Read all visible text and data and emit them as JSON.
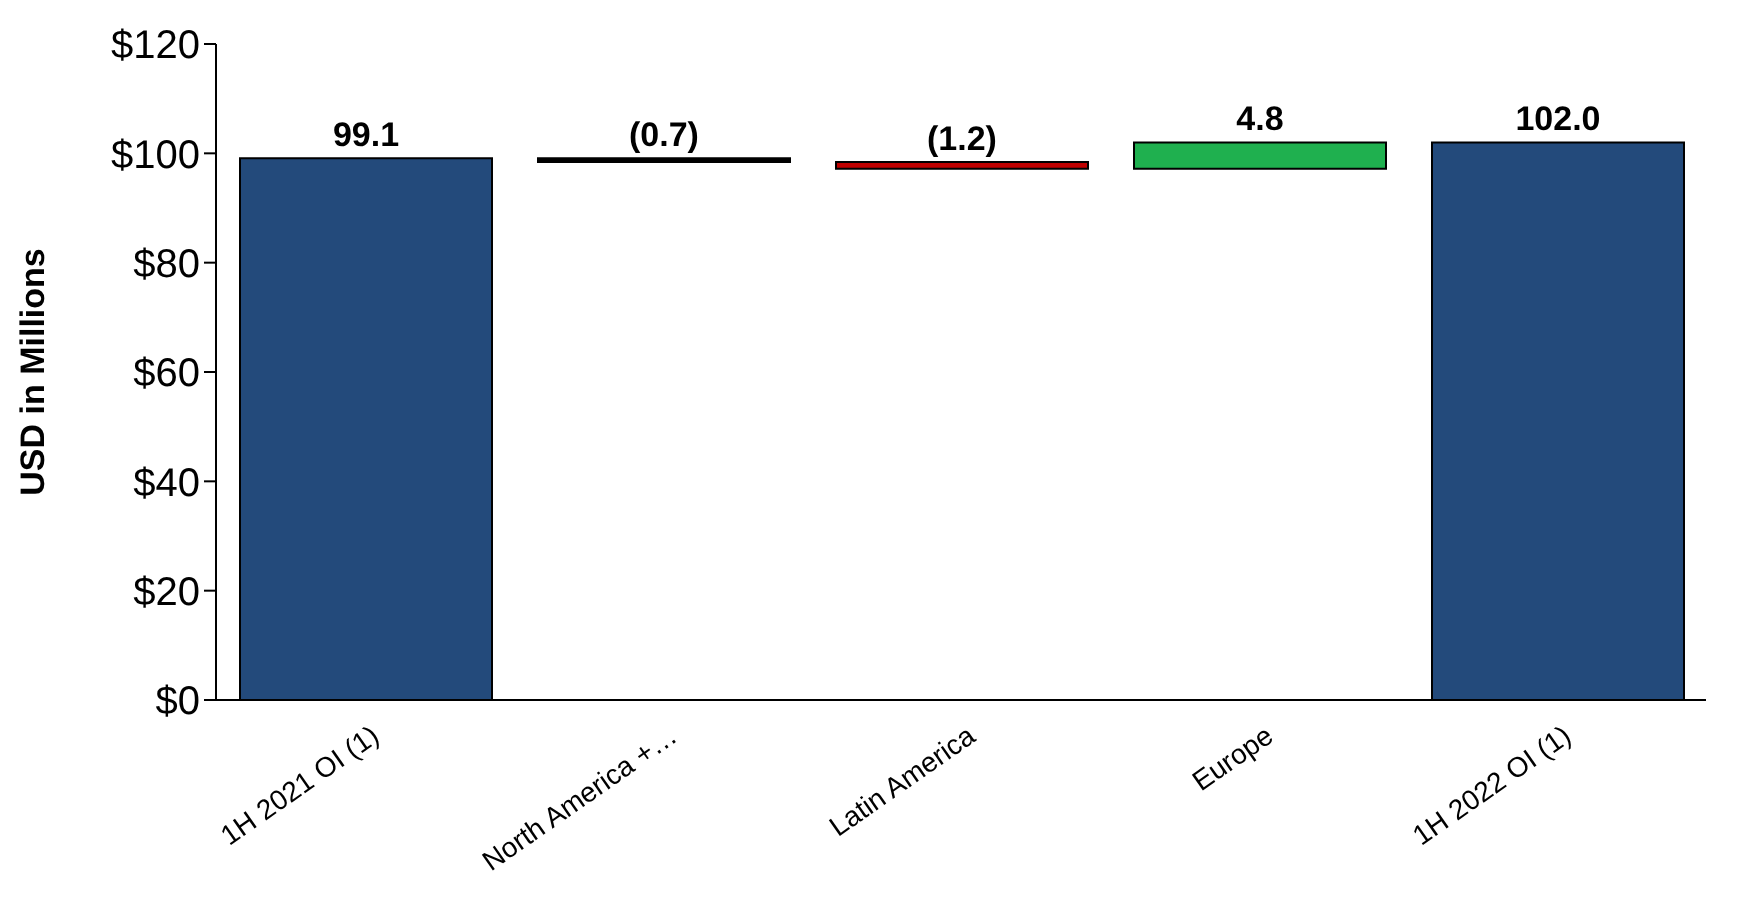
{
  "chart_data": {
    "type": "bar",
    "ylabel": "USD in Millions",
    "categories": [
      "1H 2021 OI (1)",
      "North America +…",
      "Latin America",
      "Europe",
      "1H 2022 OI (1)"
    ],
    "values": [
      99.1,
      -0.7,
      -1.2,
      4.8,
      102.0
    ],
    "base": [
      0,
      99.1,
      98.4,
      97.2,
      0
    ],
    "colors": [
      "#234a7b",
      "#000000",
      "#c00000",
      "#1fb04f",
      "#234a7b"
    ],
    "value_labels": [
      "99.1",
      "(0.7)",
      "(1.2)",
      "4.8",
      "102.0"
    ],
    "ylim": [
      0,
      120
    ],
    "yticks": [
      {
        "value": 0,
        "label": "$0"
      },
      {
        "value": 20,
        "label": "$20"
      },
      {
        "value": 40,
        "label": "$40"
      },
      {
        "value": 60,
        "label": "$60"
      },
      {
        "value": 80,
        "label": "$80"
      },
      {
        "value": 100,
        "label": "$100"
      },
      {
        "value": 120,
        "label": "$120"
      }
    ],
    "grid": false,
    "legend": false
  }
}
